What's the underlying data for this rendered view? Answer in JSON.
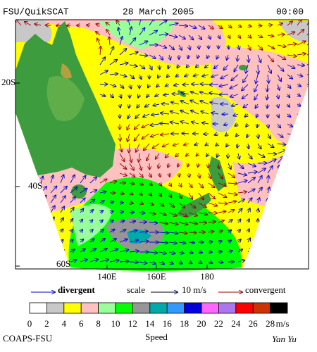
{
  "header": {
    "product": "FSU/QuikSCAT",
    "date": "28 March 2005",
    "time": "00:00"
  },
  "map": {
    "lat_labels": [
      "20S",
      "40S",
      "60S"
    ],
    "lon_labels": [
      "140E",
      "160E",
      "180"
    ]
  },
  "legend": {
    "divergent": "divergent",
    "scale": "scale",
    "scale_value": "10 m/s",
    "convergent": "convergent",
    "divergent_color": "#0000cc",
    "convergent_color": "#990000"
  },
  "colorbar": {
    "colors": [
      "#ffffff",
      "#c8c8c8",
      "#ffff00",
      "#ffc0c0",
      "#99ff99",
      "#00ff00",
      "#969696",
      "#00aaaa",
      "#3399ff",
      "#0000dd",
      "#ff66ff",
      "#aa77ee",
      "#ff0000",
      "#cc3300",
      "#000000"
    ],
    "labels": [
      "0",
      "2",
      "4",
      "6",
      "8",
      "10",
      "12",
      "14",
      "16",
      "18",
      "20",
      "22",
      "24",
      "26",
      "28"
    ],
    "unit": "m/s"
  },
  "footer": {
    "organization": "COAPS-FSU",
    "caption": "Speed",
    "signature": "Yan Yu"
  }
}
